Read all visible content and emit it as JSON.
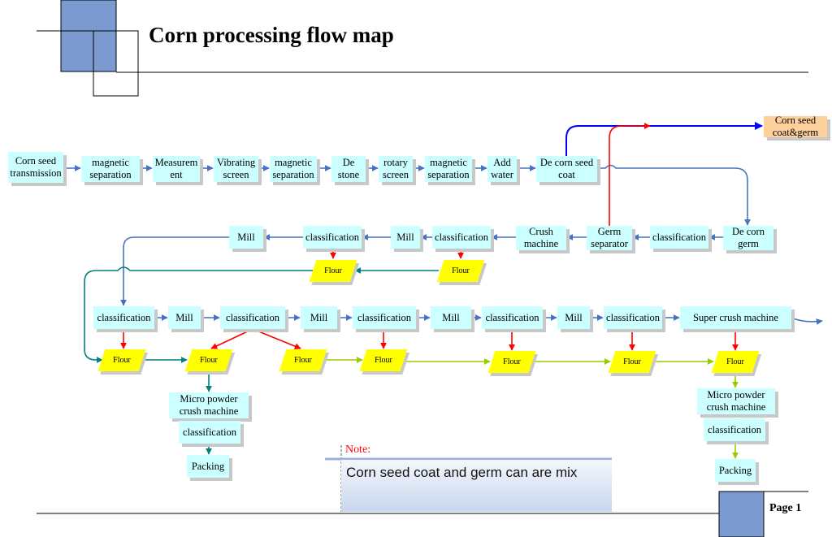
{
  "header": {
    "title": "Corn processing flow map"
  },
  "footer": {
    "page": "Page 1"
  },
  "note": {
    "label": "Note:",
    "text": "Corn seed coat and germ can are mix"
  },
  "colors": {
    "process_box": "#ccffff",
    "output_box": "#fdd09c",
    "flour": "#ffff00",
    "main_flow": "#4472c4",
    "flour_flow": "#ff0000",
    "teal_flow": "#008080",
    "green_flow": "#99cc00",
    "coat_flow": "#0000ff",
    "header_square": "#7b9bd0"
  },
  "nodes": [
    {
      "id": "n1",
      "label": "Corn seed\ntransmission"
    },
    {
      "id": "n2",
      "label": "magnetic\nseparation"
    },
    {
      "id": "n3",
      "label": "Measurem\nent"
    },
    {
      "id": "n4",
      "label": "Vibrating\nscreen"
    },
    {
      "id": "n5",
      "label": "magnetic\nseparation"
    },
    {
      "id": "n6",
      "label": "De\nstone"
    },
    {
      "id": "n7",
      "label": "rotary\nscreen"
    },
    {
      "id": "n8",
      "label": "magnetic\nseparation"
    },
    {
      "id": "n9",
      "label": "Add\nwater"
    },
    {
      "id": "n10",
      "label": "De corn seed\ncoat"
    },
    {
      "id": "n11",
      "label": "Corn seed\ncoat&germ"
    },
    {
      "id": "n12",
      "label": "De corn\ngerm"
    },
    {
      "id": "n13",
      "label": "classification"
    },
    {
      "id": "n14",
      "label": "Germ\nseparator"
    },
    {
      "id": "n15",
      "label": "Crush\nmachine"
    },
    {
      "id": "n16",
      "label": "classification"
    },
    {
      "id": "n17",
      "label": "Mill"
    },
    {
      "id": "n18",
      "label": "classification"
    },
    {
      "id": "n19",
      "label": "Mill"
    },
    {
      "id": "n20",
      "label": "classification"
    },
    {
      "id": "n21",
      "label": "Mill"
    },
    {
      "id": "n22",
      "label": "classification"
    },
    {
      "id": "n23",
      "label": "Mill"
    },
    {
      "id": "n24",
      "label": "classification"
    },
    {
      "id": "n25",
      "label": "Mill"
    },
    {
      "id": "n26",
      "label": "classification"
    },
    {
      "id": "n27",
      "label": "Mill"
    },
    {
      "id": "n28",
      "label": "classification"
    },
    {
      "id": "n29",
      "label": "Super crush machine"
    },
    {
      "id": "n30",
      "label": "Micro powder\ncrush machine"
    },
    {
      "id": "n31",
      "label": "classification"
    },
    {
      "id": "n32",
      "label": "Packing"
    },
    {
      "id": "n33",
      "label": "Micro powder\ncrush machine"
    },
    {
      "id": "n34",
      "label": "classification"
    },
    {
      "id": "n35",
      "label": "Packing"
    }
  ],
  "flours": [
    {
      "id": "f1",
      "label": "Flour"
    },
    {
      "id": "f2",
      "label": "Flour"
    },
    {
      "id": "f3",
      "label": "Flour"
    },
    {
      "id": "f4",
      "label": "Flour"
    },
    {
      "id": "f5",
      "label": "Flour"
    },
    {
      "id": "f6",
      "label": "Flour"
    },
    {
      "id": "f7",
      "label": "Flour"
    },
    {
      "id": "f8",
      "label": "Flour"
    },
    {
      "id": "f9",
      "label": "Flour"
    }
  ]
}
